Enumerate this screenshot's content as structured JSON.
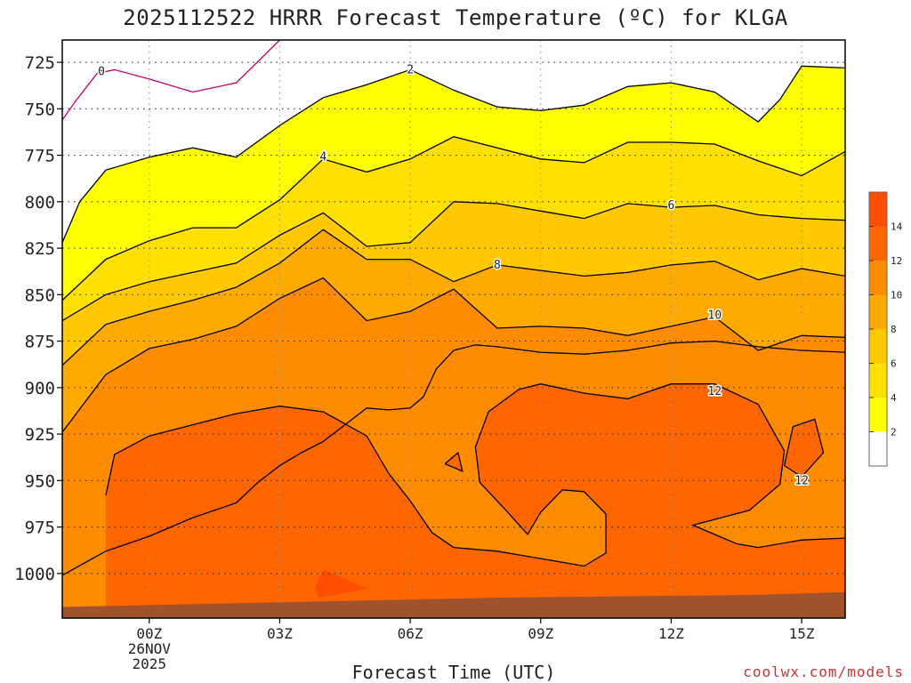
{
  "chart_data": {
    "type": "contour",
    "title": "2025112522 HRRR Forecast Temperature (ºC) for KLGA",
    "xlabel": "Forecast Time (UTC)",
    "ylabel": "",
    "credit": "coolwx.com/models",
    "x_unit": "forecast hour",
    "x_range": [
      -2,
      16
    ],
    "x_ticks": [
      {
        "x": 0,
        "lines": [
          "00Z",
          "26NOV",
          "2025"
        ]
      },
      {
        "x": 3,
        "lines": [
          "03Z"
        ]
      },
      {
        "x": 6,
        "lines": [
          "06Z"
        ]
      },
      {
        "x": 9,
        "lines": [
          "09Z"
        ]
      },
      {
        "x": 12,
        "lines": [
          "12Z"
        ]
      },
      {
        "x": 15,
        "lines": [
          "15Z"
        ]
      }
    ],
    "y_unit": "hPa",
    "y_range": [
      713,
      1024
    ],
    "y_ticks": [
      725,
      750,
      775,
      800,
      825,
      850,
      875,
      900,
      925,
      950,
      975,
      1000
    ],
    "grid": true,
    "legend": {
      "position": "right",
      "ticks": [
        2,
        4,
        6,
        8,
        10,
        12,
        14
      ]
    },
    "colors": {
      "below_0": "#ffffff",
      "0_to_2": "#ffffff",
      "2_to_4": "#ffff00",
      "4_to_6": "#ffe000",
      "6_to_8": "#ffc800",
      "8_to_10": "#ffaa00",
      "10_to_12": "#ff8c00",
      "12_to_14": "#ff6600",
      "14_to_16": "#ff4e00",
      "ground": "#a0522d",
      "zero_line": "#c0006a"
    },
    "contours": [
      {
        "level": 0,
        "label_at": [
          -1.1,
          730
        ],
        "points": [
          [
            -2,
            756
          ],
          [
            -1.7,
            746
          ],
          [
            -1.2,
            731
          ],
          [
            -0.8,
            729
          ],
          [
            0,
            734
          ],
          [
            1,
            741
          ],
          [
            2,
            736
          ],
          [
            3,
            713
          ]
        ]
      },
      {
        "level": 2,
        "label_at": [
          6,
          729
        ],
        "points": [
          [
            -2,
            822
          ],
          [
            -1.6,
            800
          ],
          [
            -1,
            783
          ],
          [
            0,
            776
          ],
          [
            1,
            771
          ],
          [
            2,
            776
          ],
          [
            3,
            759
          ],
          [
            4,
            744
          ],
          [
            5,
            737
          ],
          [
            6,
            729
          ],
          [
            7,
            740
          ],
          [
            8,
            749
          ],
          [
            9,
            751
          ],
          [
            10,
            748
          ],
          [
            11,
            738
          ],
          [
            12,
            736
          ],
          [
            13,
            741
          ],
          [
            14,
            757
          ],
          [
            14.5,
            745
          ],
          [
            15,
            727
          ],
          [
            16,
            728
          ]
        ]
      },
      {
        "level": 4,
        "label_at": [
          4,
          776
        ],
        "points": [
          [
            -2,
            853
          ],
          [
            -1,
            831
          ],
          [
            0,
            821
          ],
          [
            1,
            814
          ],
          [
            2,
            814
          ],
          [
            3,
            799
          ],
          [
            4,
            777
          ],
          [
            5,
            784
          ],
          [
            6,
            777
          ],
          [
            7,
            765
          ],
          [
            8,
            771
          ],
          [
            9,
            777
          ],
          [
            10,
            779
          ],
          [
            11,
            768
          ],
          [
            12,
            768
          ],
          [
            13,
            769
          ],
          [
            14,
            778
          ],
          [
            15,
            786
          ],
          [
            16,
            773
          ]
        ]
      },
      {
        "level": 6,
        "label_at": [
          12,
          802
        ],
        "points": [
          [
            -2,
            864
          ],
          [
            -1,
            850
          ],
          [
            0,
            843
          ],
          [
            1,
            838
          ],
          [
            2,
            833
          ],
          [
            3,
            818
          ],
          [
            4,
            806
          ],
          [
            5,
            824
          ],
          [
            6,
            822
          ],
          [
            7,
            800
          ],
          [
            8,
            801
          ],
          [
            9,
            805
          ],
          [
            10,
            809
          ],
          [
            11,
            801
          ],
          [
            12,
            803
          ],
          [
            13,
            802
          ],
          [
            14,
            807
          ],
          [
            15,
            809
          ],
          [
            16,
            810
          ]
        ]
      },
      {
        "level": 8,
        "label_at": [
          8,
          834
        ],
        "points": [
          [
            -2,
            888
          ],
          [
            -1,
            866
          ],
          [
            0,
            859
          ],
          [
            1,
            853
          ],
          [
            2,
            846
          ],
          [
            3,
            833
          ],
          [
            4,
            815
          ],
          [
            5,
            831
          ],
          [
            6,
            831
          ],
          [
            7,
            843
          ],
          [
            8,
            834
          ],
          [
            9,
            837
          ],
          [
            10,
            840
          ],
          [
            11,
            838
          ],
          [
            12,
            834
          ],
          [
            13,
            832
          ],
          [
            14,
            842
          ],
          [
            15,
            836
          ],
          [
            16,
            840
          ]
        ]
      },
      {
        "level": 10,
        "label_at": [
          13,
          861
        ],
        "points": [
          [
            -2,
            924
          ],
          [
            -1,
            893
          ],
          [
            0,
            879
          ],
          [
            1,
            874
          ],
          [
            2,
            867
          ],
          [
            3,
            852
          ],
          [
            4,
            841
          ],
          [
            5,
            864
          ],
          [
            6,
            859
          ],
          [
            7,
            847
          ],
          [
            8,
            868
          ],
          [
            9,
            867
          ],
          [
            10,
            868
          ],
          [
            11,
            872
          ],
          [
            12,
            867
          ],
          [
            13,
            862
          ],
          [
            14,
            880
          ],
          [
            15,
            872
          ],
          [
            16,
            873
          ]
        ]
      },
      {
        "level": 10,
        "label_at": null,
        "points": [
          [
            -2,
            1001
          ],
          [
            -1,
            988
          ],
          [
            0,
            980
          ],
          [
            1,
            970
          ],
          [
            2,
            962
          ],
          [
            2.5,
            951
          ],
          [
            3,
            942
          ],
          [
            3.5,
            935
          ],
          [
            4,
            929
          ],
          [
            4.5,
            920
          ],
          [
            5,
            911
          ],
          [
            5.5,
            912
          ],
          [
            6,
            911
          ],
          [
            6.3,
            905
          ],
          [
            6.6,
            890
          ],
          [
            7,
            880
          ],
          [
            7.5,
            877
          ],
          [
            8,
            878
          ],
          [
            9,
            881
          ],
          [
            10,
            882
          ],
          [
            11,
            880
          ],
          [
            12,
            876
          ],
          [
            13,
            875
          ],
          [
            14,
            878
          ],
          [
            15,
            880
          ],
          [
            16,
            881
          ]
        ]
      },
      {
        "level": 12,
        "label_at": [
          13,
          902
        ],
        "points": [
          [
            -1,
            958
          ],
          [
            -0.8,
            936
          ],
          [
            0,
            926
          ],
          [
            1,
            920
          ],
          [
            2,
            914
          ],
          [
            3,
            910
          ],
          [
            4,
            913
          ],
          [
            5,
            926
          ],
          [
            5.5,
            946
          ],
          [
            6,
            961
          ],
          [
            6.5,
            978
          ],
          [
            7,
            986
          ],
          [
            8,
            988
          ],
          [
            9,
            992
          ],
          [
            10,
            996
          ],
          [
            10.5,
            989
          ],
          [
            10.5,
            968
          ],
          [
            10,
            956
          ],
          [
            9.5,
            955
          ],
          [
            9,
            967
          ],
          [
            8.7,
            979
          ],
          [
            8.2,
            966
          ],
          [
            7.6,
            951
          ],
          [
            7.5,
            932
          ],
          [
            7.8,
            913
          ],
          [
            8.5,
            901
          ],
          [
            9,
            898
          ],
          [
            10,
            903
          ],
          [
            11,
            906
          ],
          [
            12,
            898
          ],
          [
            13,
            898
          ],
          [
            14,
            909
          ],
          [
            14.6,
            934
          ],
          [
            14.5,
            952
          ],
          [
            13.8,
            966
          ],
          [
            12.5,
            974
          ],
          [
            13.5,
            984
          ],
          [
            14,
            986
          ],
          [
            15,
            982
          ],
          [
            16,
            981
          ]
        ]
      },
      {
        "level": 12,
        "label_at": [
          15,
          950
        ],
        "points": [
          [
            14.8,
            921
          ],
          [
            15.3,
            917
          ],
          [
            15.5,
            935
          ],
          [
            15,
            948
          ],
          [
            14.6,
            942
          ],
          [
            14.8,
            921
          ]
        ]
      },
      {
        "level": 12,
        "label_at": null,
        "points": [
          [
            6.8,
            941
          ],
          [
            7.1,
            935
          ],
          [
            7.2,
            945
          ],
          [
            6.8,
            941
          ]
        ]
      }
    ],
    "fill_regions": [
      {
        "level": 14,
        "points": [
          [
            4,
            998
          ],
          [
            5,
            1008
          ],
          [
            4.2,
            1012
          ],
          [
            3.8,
            1008
          ],
          [
            4,
            998
          ]
        ]
      },
      {
        "level": 14,
        "points": [
          [
            3.8,
            1008
          ],
          [
            4.2,
            1012
          ],
          [
            3.9,
            1013
          ],
          [
            3.8,
            1008
          ]
        ]
      }
    ],
    "ground": [
      [
        -2,
        1018
      ],
      [
        0,
        1017
      ],
      [
        2,
        1016
      ],
      [
        4,
        1015
      ],
      [
        6,
        1014
      ],
      [
        8,
        1013
      ],
      [
        10,
        1012.5
      ],
      [
        12,
        1012
      ],
      [
        14,
        1011.5
      ],
      [
        16,
        1010
      ]
    ],
    "zero_line_label": "0"
  }
}
